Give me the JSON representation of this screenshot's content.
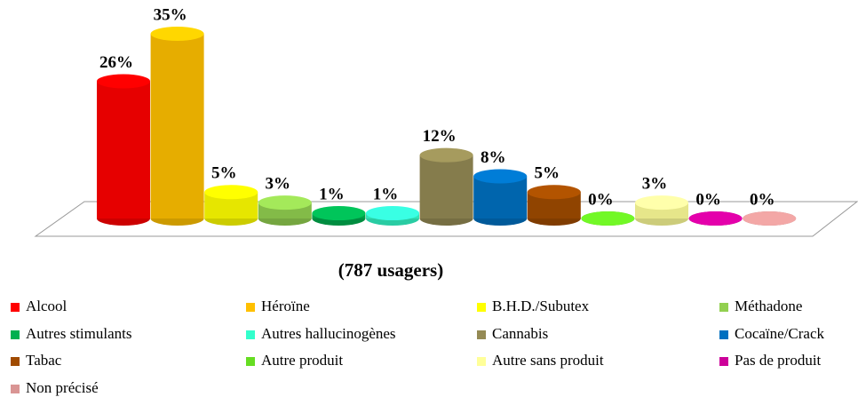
{
  "chart_data": {
    "type": "bar3d",
    "subtitle": "(787 usagers)",
    "categories": [
      "Alcool",
      "Héroïne",
      "B.H.D./Subutex",
      "Méthadone",
      "Autres stimulants",
      "Autres hallucinogènes",
      "Cannabis",
      "Cocaïne/Crack",
      "Tabac",
      "Autre produit",
      "Autre sans produit",
      "Pas de produit",
      "Non précisé"
    ],
    "values": [
      26,
      35,
      5,
      3,
      1,
      1,
      12,
      8,
      5,
      0,
      3,
      0,
      0
    ],
    "value_labels": [
      "26%",
      "35%",
      "5%",
      "3%",
      "1%",
      "1%",
      "12%",
      "8%",
      "5%",
      "0%",
      "3%",
      "0%",
      "0%"
    ],
    "colors": [
      "#ff0000",
      "#ffc000",
      "#ffff00",
      "#92d050",
      "#00b050",
      "#33ffcc",
      "#948a54",
      "#0070c0",
      "#a04b00",
      "#66dd22",
      "#ffff99",
      "#cc0099",
      "#d99594"
    ],
    "legend": "bottom"
  }
}
